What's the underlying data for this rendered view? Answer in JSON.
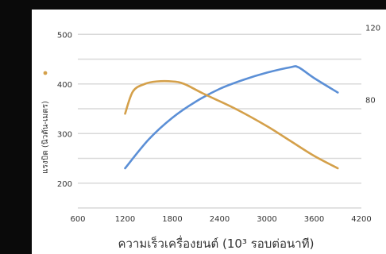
{
  "chart_data": {
    "type": "line",
    "title": "",
    "xlabel": "ความเร็วเครื่องยนต์ (10³ รอบต่อนาที)",
    "ylabel_left": "แรงบิด (นิวตัน-เมตร)",
    "ylabel_right": "",
    "x_ticks": [
      "600",
      "1200",
      "1800",
      "2400",
      "3000",
      "3600",
      "4200"
    ],
    "y_left_ticks": [
      "200",
      "300",
      "400",
      "500"
    ],
    "y_right_ticks": [
      "80",
      "120"
    ],
    "xlim": [
      600,
      4200
    ],
    "ylim_left": [
      150,
      550
    ],
    "ylim_right": [
      20,
      130
    ],
    "grid": true,
    "series": [
      {
        "axis": "right",
        "color": "#5b8fd6",
        "x": [
          1200,
          1500,
          1800,
          2100,
          2400,
          2700,
          3000,
          3300,
          3400,
          3600,
          3900
        ],
        "y": [
          42,
          58,
          70,
          79,
          86,
          91,
          95,
          98,
          98,
          92,
          84
        ]
      },
      {
        "axis": "left",
        "color": "#d4a04a",
        "x": [
          1200,
          1300,
          1450,
          1600,
          1800,
          1950,
          2200,
          2600,
          3000,
          3300,
          3600,
          3900
        ],
        "y": [
          340,
          385,
          400,
          405,
          405,
          400,
          380,
          350,
          315,
          285,
          255,
          230
        ]
      }
    ]
  }
}
